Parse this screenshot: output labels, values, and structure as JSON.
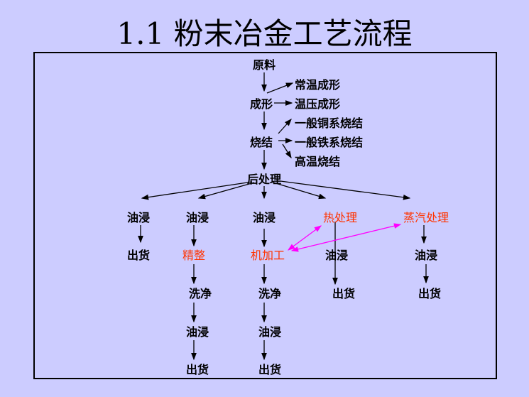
{
  "title": "1.1 粉末冶金工艺流程",
  "colors": {
    "background": "#ccccff",
    "highlight_text": "#ff3300",
    "link_arrow": "#ff00ff"
  },
  "nodes": {
    "raw": "原料",
    "forming": "成形",
    "cold": "常温成形",
    "warm": "温压成形",
    "sinter": "烧结",
    "cu": "一般铜系烧结",
    "fe": "一般铁系烧结",
    "ht": "高温烧结",
    "post": "后处理",
    "c1": [
      "油浸",
      "出货"
    ],
    "c2": [
      "油浸",
      "精整",
      "洗净",
      "油浸",
      "出货"
    ],
    "c3": [
      "油浸",
      "机加工",
      "洗净",
      "油浸",
      "出货"
    ],
    "c4": [
      "热处理",
      "油浸",
      "出货"
    ],
    "c5": [
      "蒸汽处理",
      "油浸",
      "出货"
    ]
  }
}
